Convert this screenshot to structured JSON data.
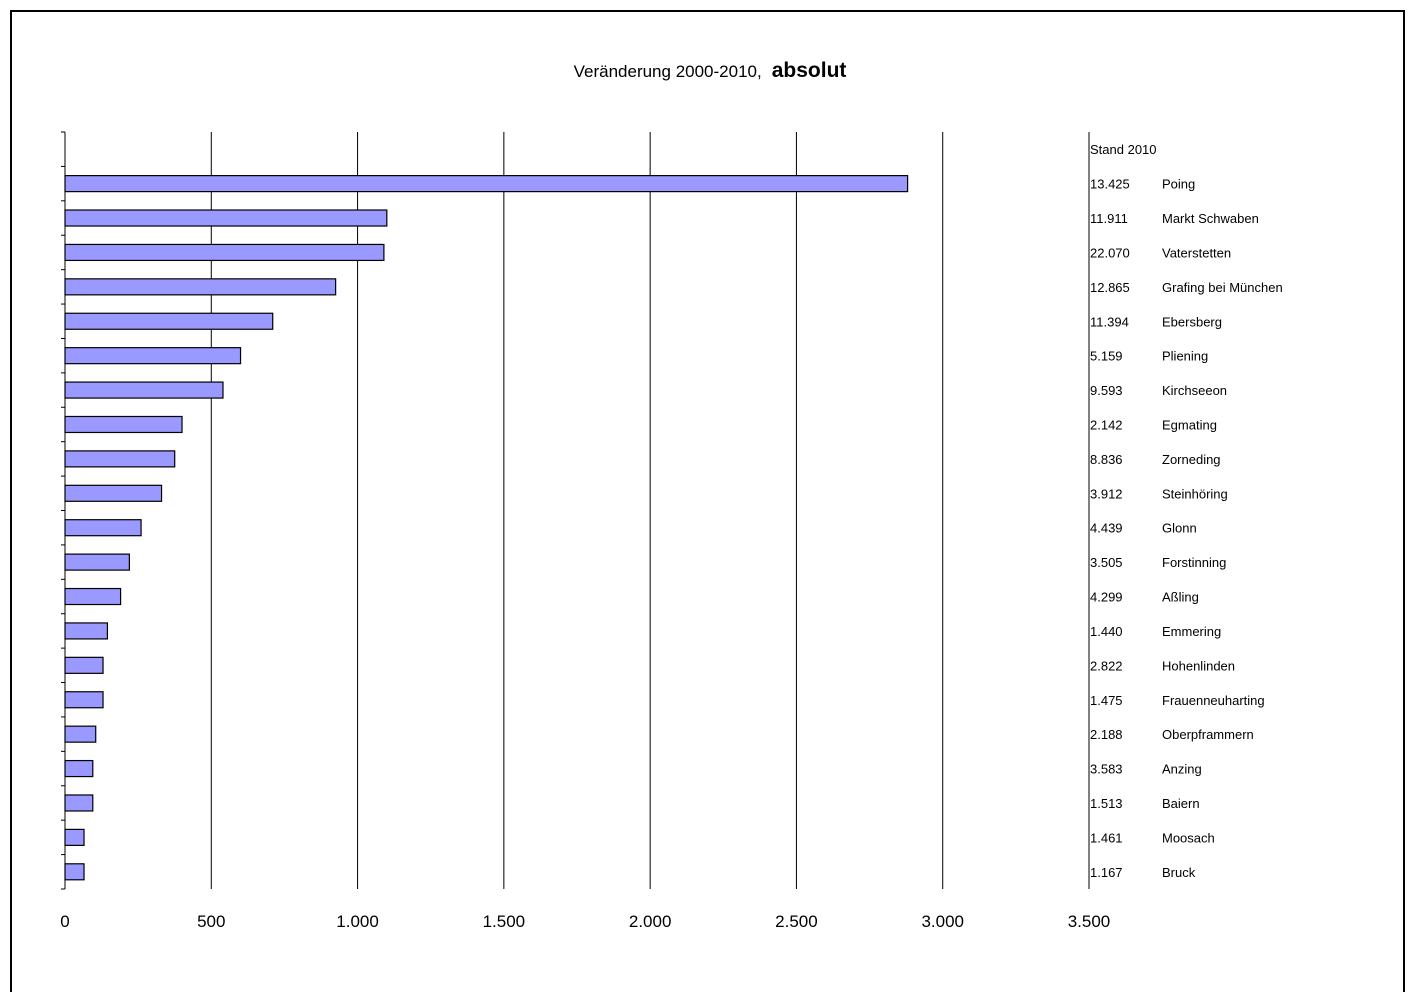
{
  "chart_data": {
    "type": "bar",
    "orientation": "horizontal",
    "title": "Veränderung 2000-2010,",
    "title_emphasis": "absolut",
    "xlim": [
      0,
      3500
    ],
    "x_ticks": [
      "0",
      "500",
      "1.000",
      "1.500",
      "2.000",
      "2.500",
      "3.000",
      "3.500"
    ],
    "x_tick_values": [
      0,
      500,
      1000,
      1500,
      2000,
      2500,
      3000,
      3500
    ],
    "grid": "vertical",
    "bar_color": "#9999ff",
    "bar_edge_color": "#000000",
    "table_header": "Stand 2010",
    "categories": [
      "Poing",
      "Markt Schwaben",
      "Vaterstetten",
      "Grafing bei München",
      "Ebersberg",
      "Pliening",
      "Kirchseeon",
      "Egmating",
      "Zorneding",
      "Steinhöring",
      "Glonn",
      "Forstinning",
      "Aßling",
      "Emmering",
      "Hohenlinden",
      "Frauenneuharting",
      "Oberpframmern",
      "Anzing",
      "Baiern",
      "Moosach",
      "Bruck"
    ],
    "stand_2010": [
      "13.425",
      "11.911",
      "22.070",
      "12.865",
      "11.394",
      "5.159",
      "9.593",
      "2.142",
      "8.836",
      "3.912",
      "4.439",
      "3.505",
      "4.299",
      "1.440",
      "2.822",
      "1.475",
      "2.188",
      "3.583",
      "1.513",
      "1.461",
      "1.167"
    ],
    "values": [
      2880,
      1100,
      1090,
      925,
      710,
      600,
      540,
      400,
      375,
      330,
      260,
      220,
      190,
      145,
      130,
      130,
      105,
      95,
      95,
      65,
      65
    ]
  }
}
